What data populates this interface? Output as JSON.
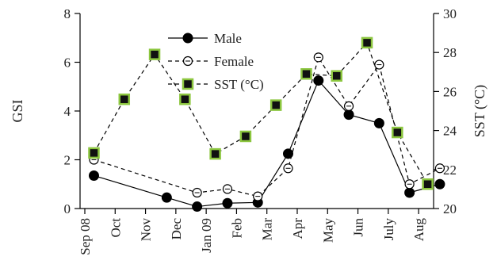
{
  "chart_data": {
    "type": "line",
    "categories": [
      "Sep 08",
      "Oct",
      "Nov",
      "Dec",
      "Jan 09",
      "Feb",
      "Mar",
      "Apr",
      "May",
      "Jun",
      "July",
      "Aug"
    ],
    "ylabel_left": "GSI",
    "ylabel_right": "SST (°C)",
    "ylim_left": [
      0,
      8
    ],
    "ylim_right": [
      20,
      30
    ],
    "yticks_left": [
      "0",
      "2",
      "4",
      "6",
      "8"
    ],
    "yticks_right": [
      "20",
      "22",
      "24",
      "26",
      "28",
      "30"
    ],
    "grid": false,
    "legend_position": "top-center",
    "series": [
      {
        "name": "Male",
        "axis": "left",
        "style": "solid",
        "marker": "filled-circle",
        "color": "#000000",
        "points": [
          [
            0.3,
            1.35
          ],
          [
            2.7,
            0.45
          ],
          [
            3.7,
            0.08
          ],
          [
            4.7,
            0.22
          ],
          [
            5.7,
            0.25
          ],
          [
            6.7,
            2.25
          ],
          [
            7.7,
            5.25
          ],
          [
            8.7,
            3.85
          ],
          [
            9.7,
            3.5
          ],
          [
            10.7,
            0.65
          ],
          [
            11.7,
            1.0
          ]
        ]
      },
      {
        "name": "Female",
        "axis": "left",
        "style": "dashed",
        "marker": "open-circle",
        "color": "#000000",
        "points": [
          [
            0.3,
            2.0
          ],
          [
            3.7,
            0.65
          ],
          [
            4.7,
            0.8
          ],
          [
            5.7,
            0.5
          ],
          [
            6.7,
            1.65
          ],
          [
            7.7,
            6.2
          ],
          [
            8.7,
            4.2
          ],
          [
            9.7,
            5.9
          ],
          [
            10.7,
            1.0
          ],
          [
            11.7,
            1.65
          ]
        ]
      },
      {
        "name": "SST (°C)",
        "axis": "right",
        "style": "dashed",
        "marker": "square",
        "color": "#8cc63f",
        "points": [
          [
            0.3,
            22.85
          ],
          [
            1.3,
            25.6
          ],
          [
            2.3,
            27.9
          ],
          [
            3.3,
            25.6
          ],
          [
            4.3,
            22.8
          ],
          [
            5.3,
            23.7
          ],
          [
            6.3,
            25.3
          ],
          [
            7.3,
            26.9
          ],
          [
            8.3,
            26.8
          ],
          [
            9.3,
            28.5
          ],
          [
            10.3,
            23.9
          ],
          [
            11.3,
            21.25
          ]
        ]
      }
    ]
  }
}
